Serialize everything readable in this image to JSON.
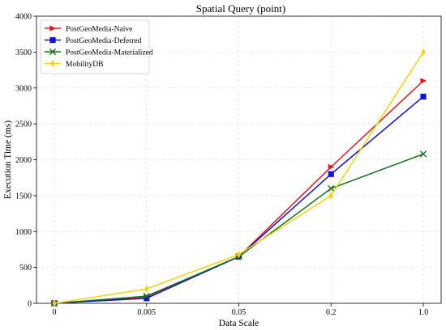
{
  "chart_data": {
    "type": "line",
    "title": "Spatial Query (point)",
    "xlabel": "Data Scale",
    "ylabel": "Execution Time (ms)",
    "categories": [
      "0",
      "0.005",
      "0.05",
      "0.2",
      "1.0"
    ],
    "ylim": [
      0,
      4000
    ],
    "yticks": [
      0,
      500,
      1000,
      1500,
      2000,
      2500,
      3000,
      3500,
      4000
    ],
    "grid": true,
    "legend_position": "top-left",
    "series": [
      {
        "name": "PostGeoMedia-Naive",
        "color": "#e8141b",
        "marker": "triangle-right",
        "values": [
          0,
          80,
          650,
          1900,
          3100
        ]
      },
      {
        "name": "PostGeoMedia-Deferred",
        "color": "#1212d6",
        "marker": "square",
        "values": [
          0,
          70,
          650,
          1800,
          2880
        ]
      },
      {
        "name": "PostGeoMedia-Materialized",
        "color": "#17701a",
        "marker": "x",
        "values": [
          0,
          100,
          650,
          1600,
          2080
        ]
      },
      {
        "name": "MobilityDB",
        "color": "#f2d40c",
        "marker": "diamond",
        "values": [
          0,
          200,
          680,
          1500,
          3500
        ]
      }
    ]
  }
}
